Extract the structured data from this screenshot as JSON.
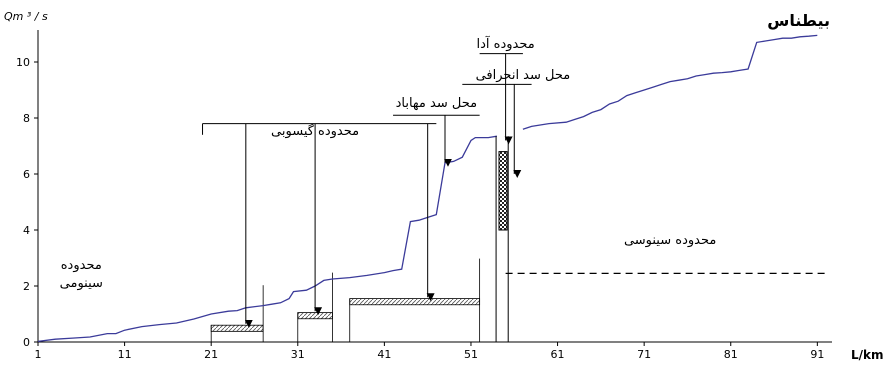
{
  "chart_data": {
    "type": "line",
    "title": "بیطناس",
    "ylabel": "Qm ³ / s",
    "xlabel": "L/km",
    "xlim": [
      1,
      92
    ],
    "ylim": [
      0,
      11
    ],
    "x_ticks": [
      1,
      11,
      21,
      31,
      41,
      51,
      61,
      71,
      81,
      91
    ],
    "y_ticks": [
      0,
      2,
      4,
      6,
      8,
      10
    ],
    "grid": false,
    "series": [
      {
        "color": "#3b3b9a",
        "segments": [
          [
            [
              1,
              0.02
            ],
            [
              3,
              0.1
            ],
            [
              5,
              0.14
            ],
            [
              7,
              0.18
            ],
            [
              9,
              0.3
            ],
            [
              10,
              0.3
            ],
            [
              11,
              0.42
            ],
            [
              13,
              0.55
            ],
            [
              15,
              0.62
            ],
            [
              17,
              0.68
            ],
            [
              19,
              0.82
            ],
            [
              21,
              1.0
            ],
            [
              23,
              1.1
            ],
            [
              24,
              1.12
            ],
            [
              25,
              1.22
            ],
            [
              27,
              1.3
            ],
            [
              28,
              1.35
            ],
            [
              29,
              1.4
            ],
            [
              30,
              1.55
            ],
            [
              30.5,
              1.8
            ],
            [
              32,
              1.85
            ],
            [
              33,
              2.0
            ],
            [
              34,
              2.2
            ],
            [
              35,
              2.25
            ],
            [
              37,
              2.3
            ],
            [
              39,
              2.38
            ],
            [
              41,
              2.48
            ],
            [
              42,
              2.55
            ],
            [
              43,
              2.6
            ],
            [
              44,
              4.3
            ],
            [
              45,
              4.35
            ],
            [
              46,
              4.45
            ],
            [
              47,
              4.55
            ],
            [
              48,
              6.4
            ],
            [
              49,
              6.45
            ],
            [
              50,
              6.6
            ],
            [
              51,
              7.2
            ],
            [
              51.5,
              7.3
            ],
            [
              53,
              7.3
            ],
            [
              54,
              7.35
            ]
          ],
          [
            [
              57,
              7.6
            ],
            [
              58,
              7.7
            ],
            [
              59,
              7.75
            ],
            [
              60,
              7.8
            ],
            [
              62,
              7.85
            ],
            [
              63,
              7.95
            ],
            [
              64,
              8.05
            ],
            [
              65,
              8.2
            ],
            [
              66,
              8.3
            ],
            [
              67,
              8.5
            ],
            [
              68,
              8.6
            ],
            [
              69,
              8.8
            ],
            [
              70,
              8.9
            ],
            [
              71,
              9.0
            ],
            [
              72,
              9.1
            ],
            [
              73,
              9.2
            ],
            [
              74,
              9.3
            ],
            [
              75,
              9.35
            ],
            [
              76,
              9.4
            ],
            [
              77,
              9.5
            ],
            [
              78,
              9.55
            ],
            [
              79,
              9.6
            ],
            [
              80,
              9.62
            ],
            [
              81,
              9.65
            ],
            [
              82,
              9.7
            ],
            [
              83,
              9.75
            ],
            [
              84,
              10.7
            ],
            [
              85,
              10.75
            ],
            [
              86,
              10.8
            ],
            [
              87,
              10.85
            ],
            [
              88,
              10.85
            ],
            [
              89,
              10.9
            ],
            [
              90,
              10.92
            ],
            [
              91,
              10.95
            ]
          ]
        ]
      }
    ],
    "threshold_line": {
      "y": 2.45,
      "x_start": 55,
      "x_end": 92,
      "style": "dashed"
    },
    "annotations": [
      {
        "text": "محدوده\nسینومی",
        "x": 6,
        "y": 2.6
      },
      {
        "text": "محدوده سینوسی",
        "x": 74,
        "y": 3.5
      },
      {
        "text": "محدوده گیسوبی",
        "x": 33,
        "y": 7.4
      },
      {
        "text": "محل سد مهاباد",
        "x": 47,
        "y": 8.4
      },
      {
        "text": "محل سد انحرافی",
        "x": 57,
        "y": 9.4
      },
      {
        "text": "محدوده آدا",
        "x": 55,
        "y": 10.5
      }
    ],
    "reservoirs": [
      {
        "x0": 21,
        "x1": 27,
        "y": 0.6
      },
      {
        "x0": 31,
        "x1": 35,
        "y": 1.05
      },
      {
        "x0": 37,
        "x1": 52,
        "y": 1.55
      }
    ],
    "arrows": [
      {
        "x": 25,
        "y_from": 7.8,
        "y_to": 0.65
      },
      {
        "x": 33,
        "y_from": 7.8,
        "y_to": 1.1
      },
      {
        "x": 46,
        "y_from": 7.8,
        "y_to": 1.6
      },
      {
        "x": 48,
        "y_from": 8.1,
        "y_to": 6.4
      },
      {
        "x": 56,
        "y_from": 9.2,
        "y_to": 6.0
      },
      {
        "x": 55,
        "y_from": 10.3,
        "y_to": 7.2
      }
    ],
    "dam_bar": {
      "x": 54.7,
      "y0": 4.0,
      "y1": 6.8
    }
  }
}
